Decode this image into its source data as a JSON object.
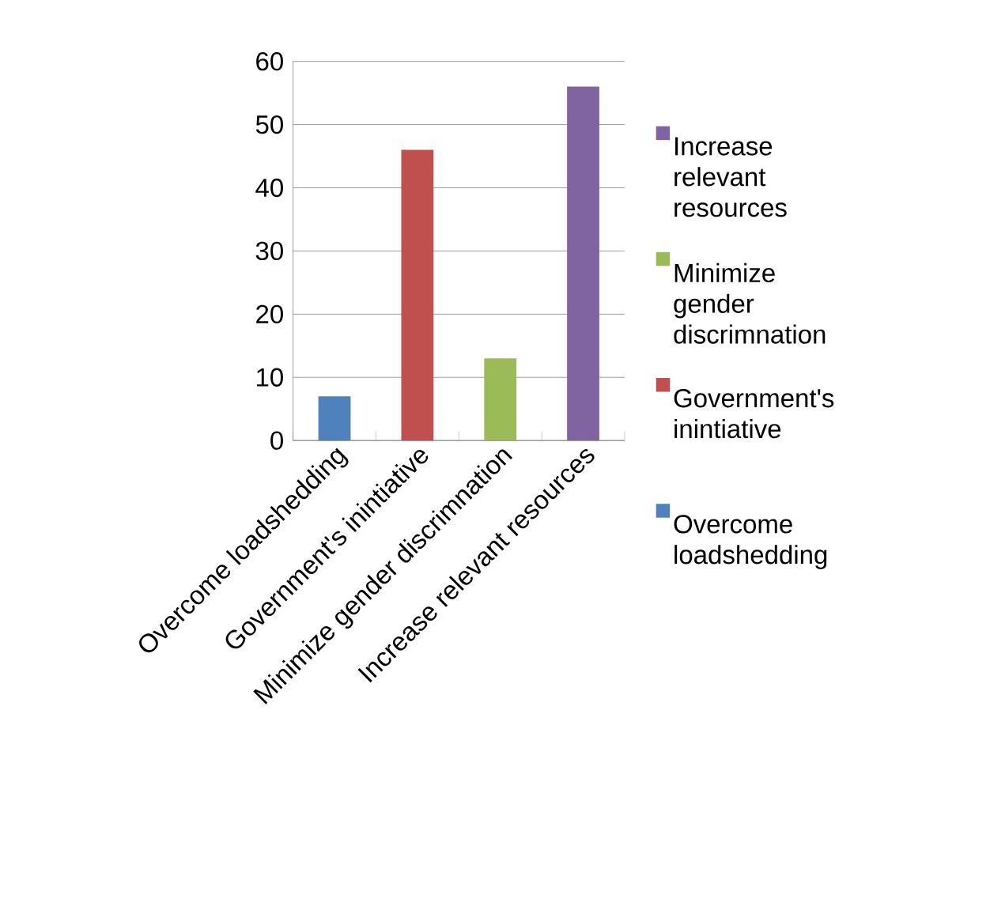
{
  "chart_data": {
    "type": "bar",
    "categories": [
      "Overcome loadshedding",
      "Government's inintiative",
      "Minimize gender discrimnation",
      "Increase relevant resources"
    ],
    "series": [
      {
        "name": "Overcome loadshedding",
        "color": "#4f81bd",
        "values": [
          7,
          null,
          null,
          null
        ]
      },
      {
        "name": "Government's inintiative",
        "color": "#c0504d",
        "values": [
          null,
          46,
          null,
          null
        ]
      },
      {
        "name": "Minimize gender discrimnation",
        "color": "#9bbb59",
        "values": [
          null,
          null,
          13,
          null
        ]
      },
      {
        "name": "Increase relevant resources",
        "color": "#8064a2",
        "values": [
          null,
          null,
          null,
          56
        ]
      }
    ],
    "ylim": [
      0,
      60
    ],
    "yticks": [
      0,
      10,
      20,
      30,
      40,
      50,
      60
    ],
    "grid": "y",
    "legend": "right"
  }
}
